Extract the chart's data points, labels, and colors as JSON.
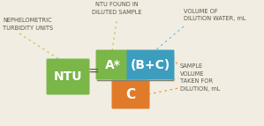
{
  "bg_color": "#f2ede2",
  "ntu_box_color": "#7ab648",
  "a_box_color": "#7ab648",
  "bc_box_color": "#3d9dbe",
  "c_box_color": "#e07b2a",
  "text_color_dark": "#5a5a4a",
  "text_color_white": "#ffffff",
  "line_color_ntu": "#b8cc55",
  "line_color_a": "#b8cc55",
  "line_color_bc": "#70c0d8",
  "line_color_c": "#e8954a",
  "label_ntu": "NEPHELOMETRIC\nTURBIDITY UNITS",
  "label_a": "NTU FOUND IN\nDILUTED SAMPLE",
  "label_bc": "VOLUME OF\nDILUTION WATER, mL",
  "label_c": "SAMPLE\nVOLUME\nTAKEN FOR\nDILUTION, mL",
  "ntu_label": "NTU",
  "equals": "=",
  "a_text": "A*",
  "bc_text": "(B+C)",
  "c_text": "C"
}
